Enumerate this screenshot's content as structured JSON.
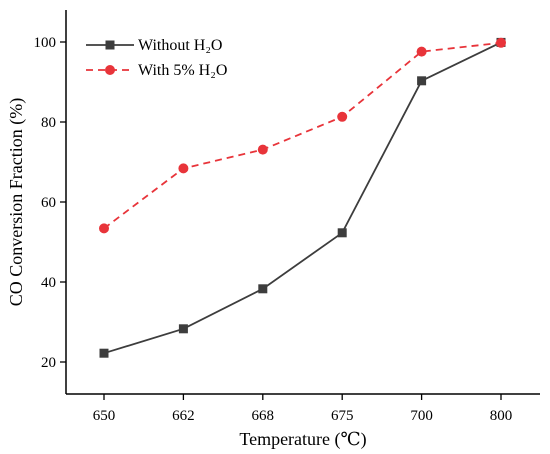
{
  "chart_data": {
    "type": "line",
    "categories": [
      "650",
      "662",
      "668",
      "675",
      "700",
      "800"
    ],
    "xlabel": "Temperature (℃)",
    "ylabel": "CO Conversion Fraction (%)",
    "ylim": [
      12,
      108
    ],
    "yticks": [
      20,
      40,
      60,
      80,
      100
    ],
    "grid": false,
    "legend_position": "top-left",
    "series": [
      {
        "name": "Without H₂O",
        "values": [
          22.2,
          28.3,
          38.3,
          52.3,
          90.3,
          99.9
        ],
        "color": "#3d3d3d",
        "marker": "square",
        "line_style": "solid"
      },
      {
        "name": "With 5% H₂O",
        "values": [
          53.4,
          68.4,
          73.1,
          81.3,
          97.6,
          99.8
        ],
        "color": "#e8343a",
        "marker": "circle",
        "line_style": "dashed"
      }
    ]
  }
}
